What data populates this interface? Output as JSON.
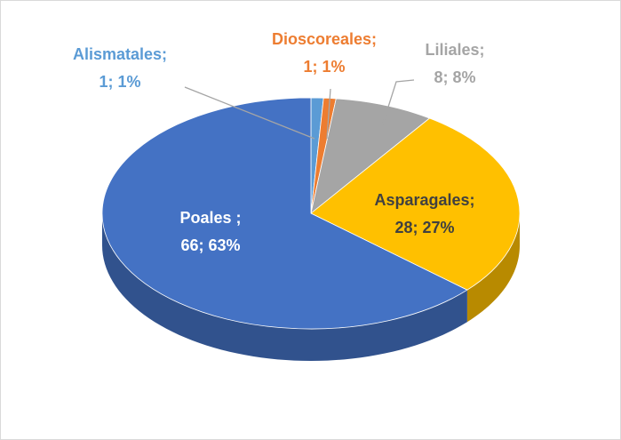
{
  "chart_data": {
    "type": "pie3d",
    "categories": [
      "Alismatales;",
      "Dioscoreales;",
      "Liliales;",
      "Asparagales;",
      "Poales ;"
    ],
    "values": [
      1,
      1,
      8,
      28,
      66
    ],
    "value_labels": [
      "1; 1%",
      "1; 1%",
      "8; 8%",
      "28; 27%",
      "66; 63%"
    ],
    "colors": [
      "#5b9bd5",
      "#ed7d31",
      "#a5a5a5",
      "#ffc000",
      "#4472c4"
    ]
  }
}
